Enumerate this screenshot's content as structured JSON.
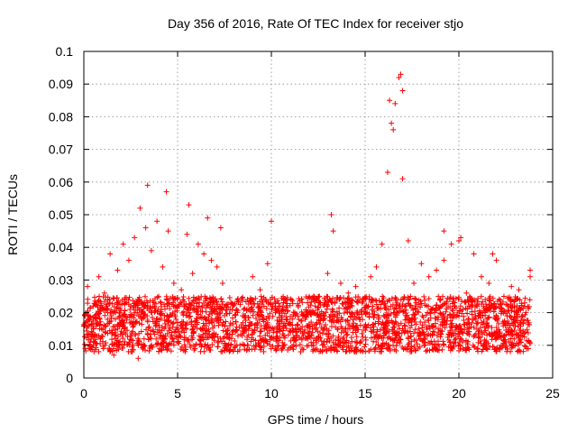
{
  "chart_data": {
    "type": "scatter",
    "title": "Day 356 of 2016, Rate Of TEC Index for receiver stjo",
    "xlabel": "GPS time / hours",
    "ylabel": "ROTI / TECUs",
    "xlim": [
      0,
      25
    ],
    "ylim": [
      0,
      0.1
    ],
    "xticks": [
      "0",
      "5",
      "10",
      "15",
      "20",
      "25"
    ],
    "yticks": [
      "0",
      "0.01",
      "0.02",
      "0.03",
      "0.04",
      "0.05",
      "0.06",
      "0.07",
      "0.08",
      "0.09",
      "0.1"
    ],
    "grid": true,
    "marker": "+",
    "color": "#ff0000",
    "series": [
      {
        "name": "ROTI",
        "x": [
          0.0,
          0.2,
          0.5,
          0.8,
          1.1,
          1.4,
          1.8,
          2.1,
          2.4,
          2.7,
          3.0,
          3.3,
          3.6,
          3.9,
          4.2,
          4.5,
          4.8,
          5.2,
          5.5,
          5.8,
          6.1,
          6.4,
          6.8,
          7.1,
          7.4,
          7.8,
          8.2,
          8.6,
          9.0,
          9.4,
          9.8,
          10.2,
          10.6,
          11.0,
          11.4,
          11.8,
          12.2,
          12.6,
          13.0,
          13.3,
          13.7,
          14.1,
          14.5,
          14.9,
          15.3,
          15.6,
          15.9,
          16.2,
          16.4,
          16.6,
          16.8,
          17.0,
          17.3,
          17.6,
          18.0,
          18.4,
          18.8,
          19.2,
          19.6,
          20.0,
          20.4,
          20.8,
          21.2,
          21.6,
          22.0,
          22.4,
          22.8,
          23.2,
          23.5,
          23.8,
          0.3,
          1.6,
          2.9,
          3.4,
          4.4,
          5.6,
          6.6,
          7.3,
          10.0,
          13.2,
          16.3,
          16.5,
          16.9,
          17.0,
          19.2,
          20.1,
          21.8,
          23.8
        ],
        "y": [
          0.016,
          0.028,
          0.022,
          0.031,
          0.026,
          0.038,
          0.033,
          0.041,
          0.036,
          0.043,
          0.052,
          0.046,
          0.039,
          0.048,
          0.034,
          0.045,
          0.029,
          0.027,
          0.044,
          0.032,
          0.041,
          0.038,
          0.036,
          0.034,
          0.029,
          0.021,
          0.024,
          0.019,
          0.031,
          0.027,
          0.035,
          0.022,
          0.021,
          0.017,
          0.019,
          0.018,
          0.016,
          0.023,
          0.032,
          0.045,
          0.029,
          0.026,
          0.028,
          0.024,
          0.031,
          0.034,
          0.041,
          0.063,
          0.078,
          0.084,
          0.092,
          0.088,
          0.042,
          0.029,
          0.035,
          0.031,
          0.033,
          0.036,
          0.041,
          0.042,
          0.026,
          0.038,
          0.031,
          0.029,
          0.036,
          0.025,
          0.028,
          0.027,
          0.022,
          0.031,
          0.009,
          0.007,
          0.006,
          0.059,
          0.057,
          0.053,
          0.049,
          0.046,
          0.048,
          0.05,
          0.085,
          0.076,
          0.093,
          0.061,
          0.045,
          0.043,
          0.038,
          0.033
        ],
        "band_low": 0.008,
        "band_high": 0.025
      }
    ]
  }
}
